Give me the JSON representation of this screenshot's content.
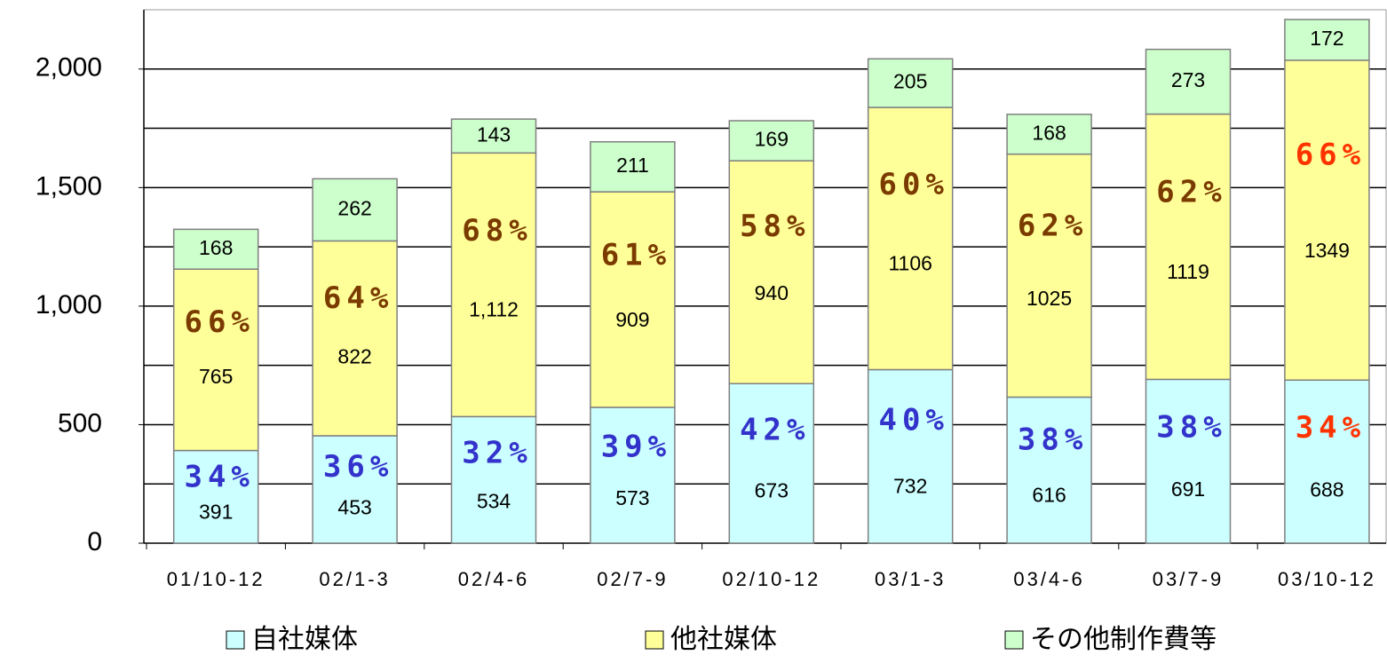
{
  "chart_data": {
    "type": "stacked_bar",
    "categories": [
      "01/10-12",
      "02/1-3",
      "02/4-6",
      "02/7-9",
      "02/10-12",
      "03/1-3",
      "03/4-6",
      "03/7-9",
      "03/10-12"
    ],
    "series": [
      {
        "name": "自社媒体",
        "color": "#ccffff",
        "values": [
          391,
          453,
          534,
          573,
          673,
          732,
          616,
          691,
          688
        ],
        "share_values": [
          34,
          36,
          32,
          39,
          42,
          40,
          38,
          38,
          34
        ],
        "share_labels": [
          "34%",
          "36%",
          "32%",
          "39%",
          "42%",
          "40%",
          "38%",
          "38%",
          "34%"
        ],
        "share_color": "#3333cc"
      },
      {
        "name": "他社媒体",
        "color": "#ffff99",
        "values": [
          765,
          822,
          1112,
          909,
          940,
          1106,
          1025,
          1119,
          1349
        ],
        "value_labels": [
          "765",
          "822",
          "1,112",
          "909",
          "940",
          "1106",
          "1025",
          "1119",
          "1349"
        ],
        "share_values": [
          66,
          64,
          68,
          61,
          58,
          60,
          62,
          62,
          66
        ],
        "share_labels": [
          "66%",
          "64%",
          "68%",
          "61%",
          "58%",
          "60%",
          "62%",
          "62%",
          "66%"
        ],
        "share_color": "#7a3a00"
      },
      {
        "name": "その他制作費等",
        "color": "#ccffcc",
        "values": [
          168,
          262,
          143,
          211,
          169,
          205,
          168,
          273,
          172
        ]
      }
    ],
    "share_highlight_index": 8,
    "share_highlight_color": "#ff3300",
    "ylim": [
      0,
      2250
    ],
    "yticks": [
      0,
      500,
      {
        "value": 1000,
        "label": "1,000"
      },
      {
        "value": 1500,
        "label": "1,500"
      },
      {
        "value": 2000,
        "label": "2,000"
      }
    ],
    "minor_yticks": [
      250,
      750,
      1250,
      1750
    ],
    "grid": true,
    "legend": "bottom"
  }
}
